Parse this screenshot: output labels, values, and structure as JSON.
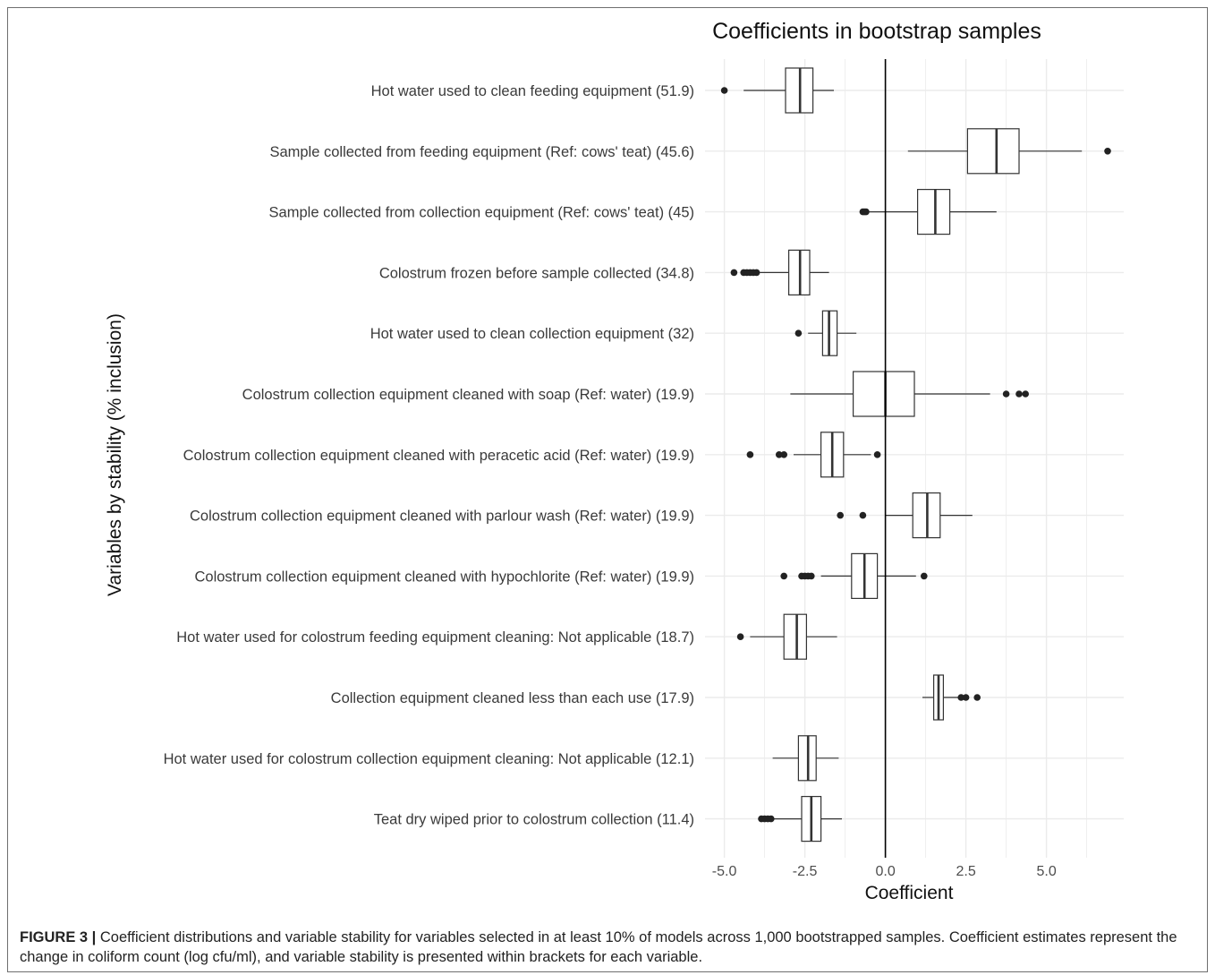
{
  "chart_data": {
    "type": "boxplot",
    "orientation": "horizontal",
    "title": "Coefficients in bootstrap samples",
    "xlabel": "Coefficient",
    "ylabel": "Variables by stability (% inclusion)",
    "xlim": [
      -5.6,
      7.4
    ],
    "xticks": [
      -5.0,
      -2.5,
      0.0,
      2.5,
      5.0
    ],
    "xtick_labels": [
      "-5.0",
      "-2.5",
      "0.0",
      "2.5",
      "5.0"
    ],
    "reference_line": 0,
    "grid": true,
    "series": [
      {
        "label": "Hot water used to clean feeding equipment (51.9)",
        "whisker_low": -4.4,
        "q1": -3.1,
        "median": -2.65,
        "q3": -2.25,
        "whisker_high": -1.6,
        "outliers": [
          -5.0
        ]
      },
      {
        "label": "Sample collected from feeding equipment (Ref: cows' teat) (45.6)",
        "whisker_low": 0.7,
        "q1": 2.55,
        "median": 3.45,
        "q3": 4.15,
        "whisker_high": 6.1,
        "outliers": [
          6.9
        ]
      },
      {
        "label": "Sample collected from collection equipment (Ref: cows' teat) (45)",
        "whisker_low": -0.5,
        "q1": 1.0,
        "median": 1.55,
        "q3": 2.0,
        "whisker_high": 3.45,
        "outliers": [
          -0.7,
          -0.65,
          -0.6
        ]
      },
      {
        "label": "Colostrum frozen before sample collected (34.8)",
        "whisker_low": -3.9,
        "q1": -3.0,
        "median": -2.65,
        "q3": -2.35,
        "whisker_high": -1.75,
        "outliers": [
          -4.7,
          -4.4,
          -4.3,
          -4.2,
          -4.1,
          -4.0
        ]
      },
      {
        "label": "Hot water used to clean collection equipment (32)",
        "whisker_low": -2.4,
        "q1": -1.95,
        "median": -1.75,
        "q3": -1.5,
        "whisker_high": -0.9,
        "outliers": [
          -2.7
        ]
      },
      {
        "label": "Colostrum collection equipment cleaned with soap (Ref: water) (19.9)",
        "whisker_low": -2.95,
        "q1": -1.0,
        "median": 0.0,
        "q3": 0.9,
        "whisker_high": 3.25,
        "outliers": [
          3.75,
          4.15,
          4.35
        ]
      },
      {
        "label": "Colostrum collection equipment cleaned with peracetic acid (Ref: water) (19.9)",
        "whisker_low": -2.85,
        "q1": -2.0,
        "median": -1.65,
        "q3": -1.3,
        "whisker_high": -0.45,
        "outliers": [
          -4.2,
          -3.3,
          -3.15,
          -0.25
        ]
      },
      {
        "label": "Colostrum collection equipment cleaned with parlour wash (Ref: water) (19.9)",
        "whisker_low": 0.0,
        "q1": 0.85,
        "median": 1.3,
        "q3": 1.7,
        "whisker_high": 2.7,
        "outliers": [
          -1.4,
          -0.7
        ]
      },
      {
        "label": "Colostrum collection equipment cleaned with hypochlorite (Ref: water) (19.9)",
        "whisker_low": -2.0,
        "q1": -1.05,
        "median": -0.65,
        "q3": -0.25,
        "whisker_high": 0.95,
        "outliers": [
          -3.15,
          -2.6,
          -2.5,
          -2.4,
          -2.3,
          1.2
        ]
      },
      {
        "label": "Hot water used for colostrum feeding equipment cleaning: Not applicable (18.7)",
        "whisker_low": -4.2,
        "q1": -3.15,
        "median": -2.75,
        "q3": -2.45,
        "whisker_high": -1.5,
        "outliers": [
          -4.5
        ]
      },
      {
        "label": "Collection equipment cleaned less than each use (17.9)",
        "whisker_low": 1.15,
        "q1": 1.5,
        "median": 1.65,
        "q3": 1.8,
        "whisker_high": 2.25,
        "outliers": [
          2.35,
          2.5,
          2.85
        ]
      },
      {
        "label": "Hot water used for colostrum collection equipment cleaning: Not applicable (12.1)",
        "whisker_low": -3.5,
        "q1": -2.7,
        "median": -2.4,
        "q3": -2.15,
        "whisker_high": -1.45,
        "outliers": []
      },
      {
        "label": "Teat dry wiped prior to colostrum collection (11.4)",
        "whisker_low": -3.5,
        "q1": -2.6,
        "median": -2.3,
        "q3": -2.0,
        "whisker_high": -1.35,
        "outliers": [
          -3.85,
          -3.75,
          -3.65,
          -3.55
        ]
      }
    ]
  },
  "caption": {
    "label": "FIGURE 3 |",
    "text": " Coefficient distributions and variable stability for variables selected in at least 10% of models across 1,000 bootstrapped samples. Coefficient estimates represent the change in coliform count (log cfu/ml), and variable stability is presented within brackets for each variable."
  }
}
